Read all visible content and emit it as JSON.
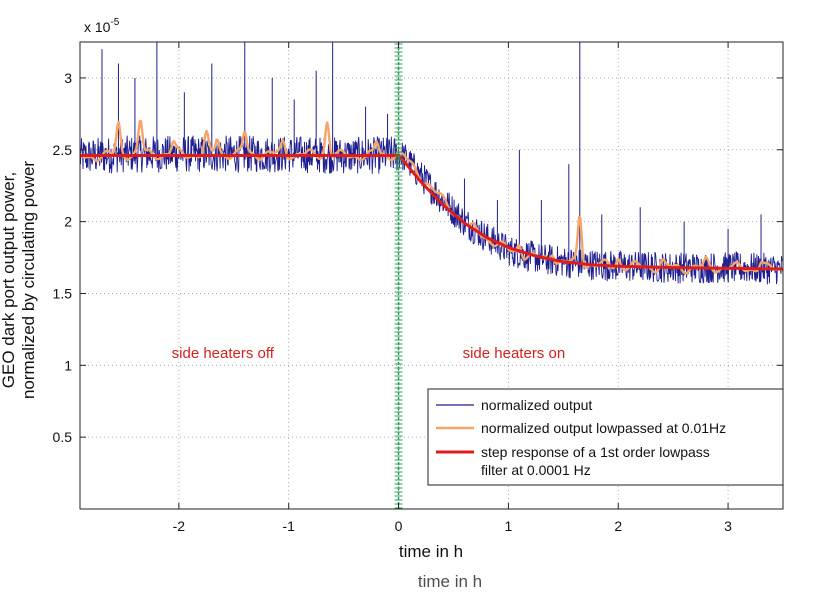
{
  "chart_data": {
    "type": "line",
    "title": "",
    "xlabel": "time in h",
    "xlabel_ghost": "time in h",
    "ylabel_line1": "GEO dark port output power,",
    "ylabel_line2": "normalized by circulating power",
    "y_multiplier_base": "x 10",
    "y_multiplier_exp": "-5",
    "xlim": [
      -2.9,
      3.5
    ],
    "ylim": [
      0,
      3.25
    ],
    "xticks": [
      -2,
      -1,
      0,
      1,
      2,
      3
    ],
    "xtick_labels": [
      "-2",
      "-1",
      "0",
      "1",
      "2",
      "3"
    ],
    "yticks": [
      0.5,
      1,
      1.5,
      2,
      2.5,
      3
    ],
    "ytick_labels": [
      "0.5",
      "1",
      "1.5",
      "2",
      "2.5",
      "3"
    ],
    "grid": true,
    "legend_position": "bottom-right",
    "step_marker_x": 0.0,
    "colors": {
      "raw": "#1f1f8f",
      "lowpassed": "#f5a56a",
      "model": "#e01b1b",
      "marker": "#2ca05a",
      "annotation": "#d62020"
    },
    "annotations": [
      {
        "text": "side heaters off",
        "x": -1.6,
        "y": 1.05
      },
      {
        "text": "side heaters on",
        "x": 1.05,
        "y": 1.05
      }
    ],
    "series": [
      {
        "name": "normalized output",
        "style": "noisy",
        "x": [
          -2.9,
          -2.5,
          -2.0,
          -1.5,
          -1.0,
          -0.5,
          -0.2,
          0.0,
          0.05,
          0.2,
          0.4,
          0.6,
          0.8,
          1.0,
          1.3,
          1.6,
          2.0,
          2.5,
          3.0,
          3.5
        ],
        "y": [
          2.45,
          2.47,
          2.47,
          2.47,
          2.47,
          2.46,
          2.46,
          2.47,
          2.45,
          2.32,
          2.15,
          2.0,
          1.89,
          1.8,
          1.74,
          1.71,
          1.69,
          1.68,
          1.68,
          1.67
        ],
        "spikes": [
          {
            "x": -2.7,
            "y": 3.2
          },
          {
            "x": -2.55,
            "y": 3.1
          },
          {
            "x": -2.4,
            "y": 3.0
          },
          {
            "x": -2.2,
            "y": 3.25
          },
          {
            "x": -1.95,
            "y": 2.9
          },
          {
            "x": -1.7,
            "y": 3.1
          },
          {
            "x": -1.4,
            "y": 3.25
          },
          {
            "x": -1.15,
            "y": 3.0
          },
          {
            "x": -0.95,
            "y": 2.85
          },
          {
            "x": -0.75,
            "y": 3.05
          },
          {
            "x": -0.6,
            "y": 3.25
          },
          {
            "x": -0.3,
            "y": 2.8
          },
          {
            "x": -0.1,
            "y": 2.75
          },
          {
            "x": 0.6,
            "y": 2.3
          },
          {
            "x": 0.9,
            "y": 2.15
          },
          {
            "x": 1.1,
            "y": 2.5
          },
          {
            "x": 1.3,
            "y": 2.15
          },
          {
            "x": 1.55,
            "y": 2.4
          },
          {
            "x": 1.65,
            "y": 3.25
          },
          {
            "x": 1.85,
            "y": 2.05
          },
          {
            "x": 2.2,
            "y": 2.1
          },
          {
            "x": 2.6,
            "y": 2.0
          },
          {
            "x": 3.0,
            "y": 1.95
          },
          {
            "x": 3.3,
            "y": 2.05
          }
        ]
      },
      {
        "name": "normalized output lowpassed at 0.01Hz",
        "style": "smooth",
        "x": [
          -2.9,
          -2.5,
          -2.0,
          -1.5,
          -1.0,
          -0.5,
          -0.2,
          0.0,
          0.05,
          0.2,
          0.4,
          0.6,
          0.8,
          1.0,
          1.3,
          1.6,
          2.0,
          2.5,
          3.0,
          3.5
        ],
        "y": [
          2.45,
          2.47,
          2.47,
          2.47,
          2.47,
          2.46,
          2.46,
          2.47,
          2.45,
          2.32,
          2.15,
          2.0,
          1.89,
          1.8,
          1.74,
          1.71,
          1.69,
          1.68,
          1.68,
          1.67
        ],
        "bumps": [
          {
            "x": -2.55,
            "y": 2.68
          },
          {
            "x": -2.35,
            "y": 2.7
          },
          {
            "x": -2.05,
            "y": 2.55
          },
          {
            "x": -1.75,
            "y": 2.6
          },
          {
            "x": -1.65,
            "y": 2.58
          },
          {
            "x": -1.4,
            "y": 2.62
          },
          {
            "x": -1.05,
            "y": 2.55
          },
          {
            "x": -0.65,
            "y": 2.7
          },
          {
            "x": -0.2,
            "y": 2.55
          },
          {
            "x": 0.65,
            "y": 1.95
          },
          {
            "x": 1.1,
            "y": 1.85
          },
          {
            "x": 1.4,
            "y": 1.8
          },
          {
            "x": 1.65,
            "y": 2.05
          },
          {
            "x": 2.0,
            "y": 1.75
          },
          {
            "x": 2.4,
            "y": 1.72
          },
          {
            "x": 2.8,
            "y": 1.72
          },
          {
            "x": 3.3,
            "y": 1.72
          }
        ]
      },
      {
        "name": "step response of a 1st order lowpass filter at 0.0001 Hz",
        "name_line1": "step response of a 1st order lowpass",
        "name_line2": "filter at 0.0001 Hz",
        "style": "model",
        "x": [
          -2.9,
          -2.0,
          -1.0,
          0.0,
          0.05,
          0.2,
          0.4,
          0.6,
          0.8,
          1.0,
          1.25,
          1.5,
          1.75,
          2.0,
          2.5,
          3.0,
          3.5
        ],
        "y": [
          2.46,
          2.46,
          2.46,
          2.46,
          2.42,
          2.28,
          2.12,
          1.99,
          1.89,
          1.82,
          1.76,
          1.72,
          1.7,
          1.69,
          1.68,
          1.675,
          1.67
        ]
      }
    ]
  }
}
